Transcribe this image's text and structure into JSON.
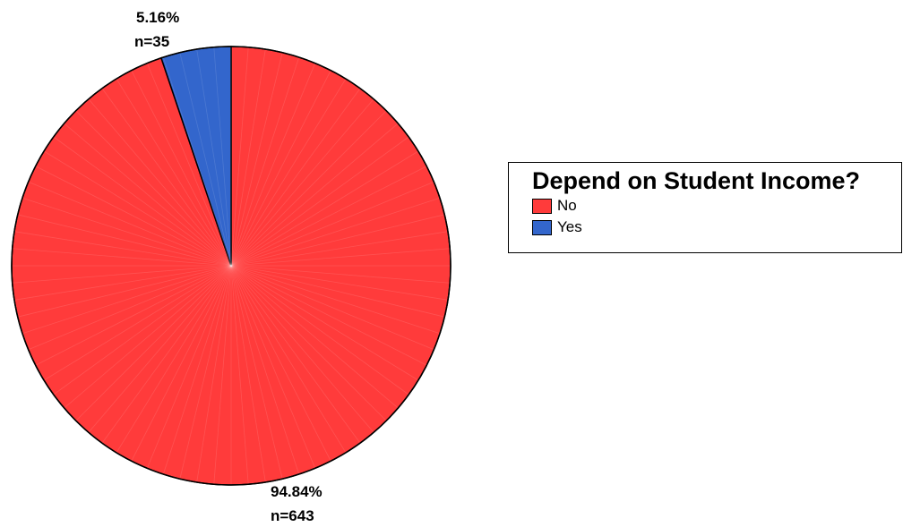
{
  "chart_data": {
    "type": "pie",
    "legend_title": "Depend on Student Income?",
    "legend_position": "right",
    "slices": [
      {
        "label": "No",
        "percent": 94.84,
        "n": 643,
        "color": "#ff3b3b",
        "percent_text": "94.84%",
        "n_text": "n=643"
      },
      {
        "label": "Yes",
        "percent": 5.16,
        "n": 35,
        "color": "#3366cc",
        "percent_text": "5.16%",
        "n_text": "n=35"
      }
    ]
  }
}
